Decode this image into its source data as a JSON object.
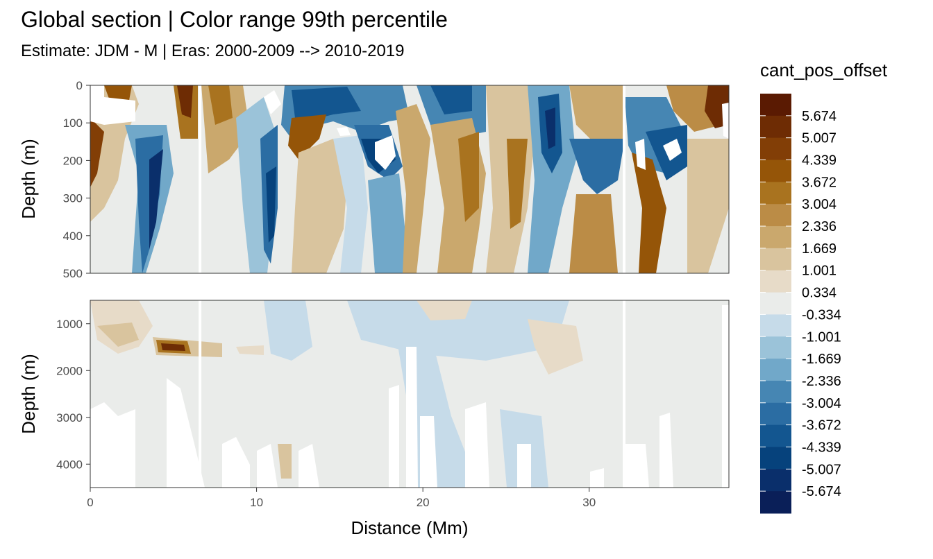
{
  "chart_data": {
    "type": "heatmap",
    "title": "Global section | Color range 99th percentile",
    "subtitle": "Estimate: JDM - M | Eras: 2000-2009 --> 2010-2019",
    "xlabel": "Distance (Mm)",
    "x_ticks": [
      0,
      10,
      20,
      30
    ],
    "xlim": [
      0,
      38.4
    ],
    "panels": [
      {
        "ylabel": "Depth (m)",
        "ylim": [
          0,
          500
        ],
        "y_reversed": true,
        "y_ticks": [
          0,
          100,
          200,
          300,
          400,
          500
        ]
      },
      {
        "ylabel": "Depth (m)",
        "ylim": [
          500,
          4500
        ],
        "y_reversed": true,
        "y_ticks": [
          1000,
          2000,
          3000,
          4000
        ]
      }
    ],
    "legend": {
      "title": "cant_pos_offset",
      "placement": "right",
      "labels": [
        "5.674",
        "5.007",
        "4.339",
        "3.672",
        "3.004",
        "2.336",
        "1.669",
        "1.001",
        "0.334",
        "-0.334",
        "-1.001",
        "-1.669",
        "-2.336",
        "-3.004",
        "-3.672",
        "-4.339",
        "-5.007",
        "-5.674"
      ],
      "colors": [
        "#5a1a02",
        "#6e2c04",
        "#823e06",
        "#955508",
        "#a9731f",
        "#bb8c46",
        "#caa86d",
        "#d9c49e",
        "#e7dbc8",
        "#eaecea",
        "#c6dbe9",
        "#9bc3d9",
        "#71a8c9",
        "#4686b3",
        "#2b6da3",
        "#135690",
        "#06427c",
        "#0a2f6b",
        "#0a1f58"
      ]
    },
    "background_fill": "#eaecea",
    "gap_lines_at_x": [
      6.6,
      32.1
    ]
  }
}
